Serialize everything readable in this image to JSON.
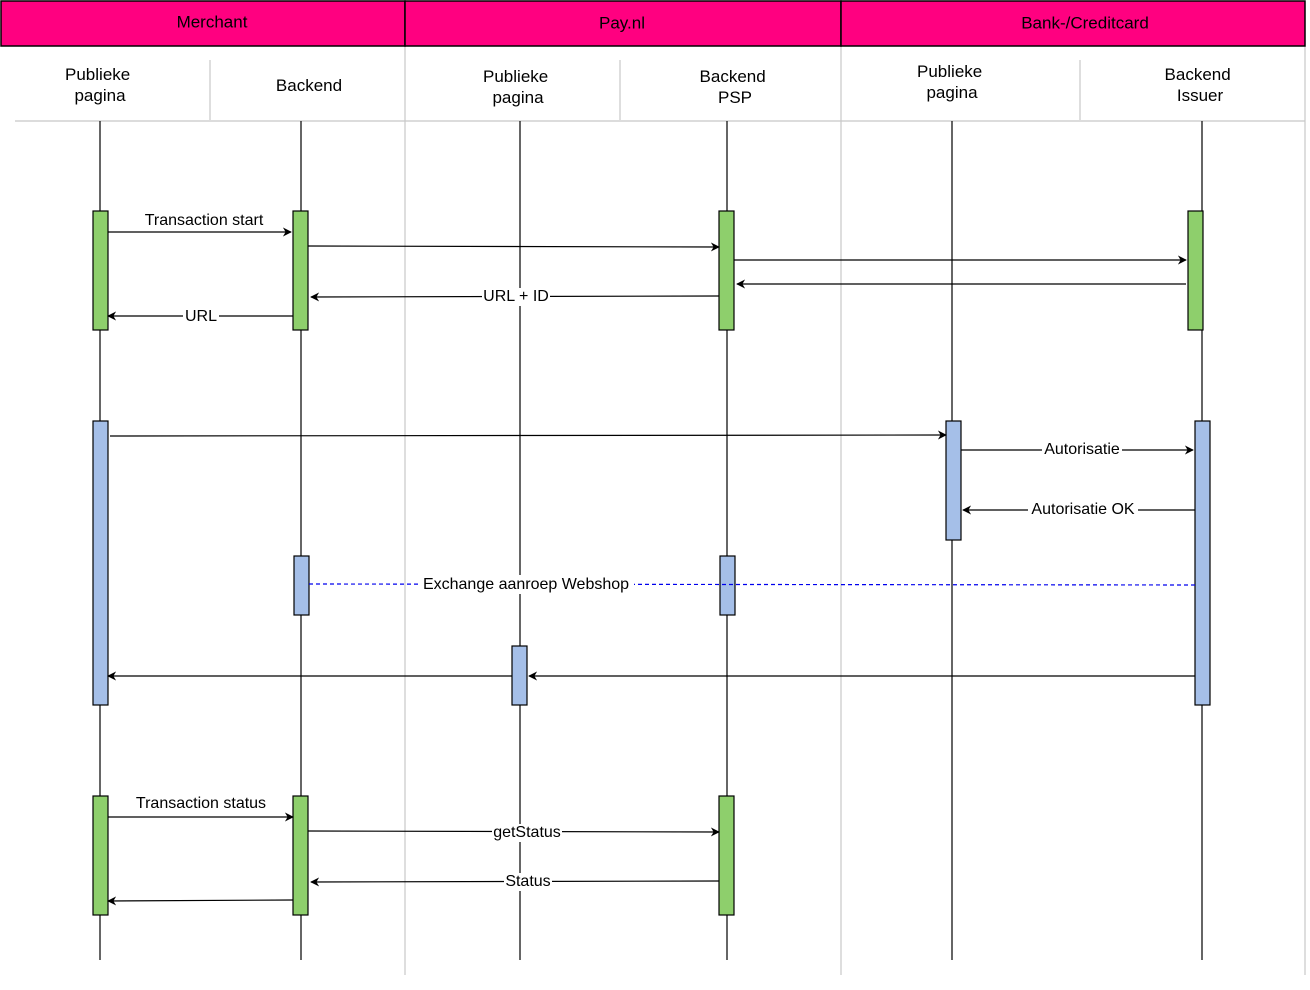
{
  "groups": [
    {
      "label": "Merchant"
    },
    {
      "label": "Pay.nl"
    },
    {
      "label": "Bank-/Creditcard"
    }
  ],
  "roles": [
    {
      "lines": [
        "Publieke",
        "pagina"
      ]
    },
    {
      "lines": [
        "Backend"
      ]
    },
    {
      "lines": [
        "Publieke",
        "pagina"
      ]
    },
    {
      "lines": [
        "Backend",
        "PSP"
      ]
    },
    {
      "lines": [
        "Publieke",
        "pagina"
      ]
    },
    {
      "lines": [
        "Backend",
        "Issuer"
      ]
    }
  ],
  "messages": {
    "transaction_start": "Transaction start",
    "url_id": "URL + ID",
    "url": "URL",
    "autorisatie": "Autorisatie",
    "autorisatie_ok": "Autorisatie OK",
    "exchange": "Exchange aanroep Webshop",
    "transaction_status": "Transaction status",
    "get_status": "getStatus",
    "status": "Status"
  },
  "colors": {
    "header_band": "#ff0080",
    "activation_green": "#8ecf6c",
    "activation_blue": "#a5bfe8",
    "exchange_line": "#0000ee"
  }
}
